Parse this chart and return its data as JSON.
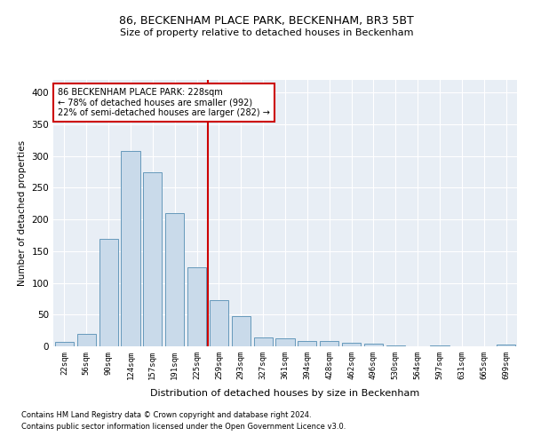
{
  "title": "86, BECKENHAM PLACE PARK, BECKENHAM, BR3 5BT",
  "subtitle": "Size of property relative to detached houses in Beckenham",
  "xlabel": "Distribution of detached houses by size in Beckenham",
  "ylabel": "Number of detached properties",
  "bar_labels": [
    "22sqm",
    "56sqm",
    "90sqm",
    "124sqm",
    "157sqm",
    "191sqm",
    "225sqm",
    "259sqm",
    "293sqm",
    "327sqm",
    "361sqm",
    "394sqm",
    "428sqm",
    "462sqm",
    "496sqm",
    "530sqm",
    "564sqm",
    "597sqm",
    "631sqm",
    "665sqm",
    "699sqm"
  ],
  "bar_values": [
    7,
    20,
    170,
    308,
    275,
    210,
    125,
    73,
    48,
    14,
    12,
    8,
    8,
    5,
    4,
    1,
    0,
    1,
    0,
    0,
    3
  ],
  "bar_color": "#c9daea",
  "bar_edge_color": "#6699bb",
  "vline_color": "#cc0000",
  "vline_x_index": 6.5,
  "annotation_title": "86 BECKENHAM PLACE PARK: 228sqm",
  "annotation_line1": "← 78% of detached houses are smaller (992)",
  "annotation_line2": "22% of semi-detached houses are larger (282) →",
  "annotation_box_color": "#cc0000",
  "ylim": [
    0,
    420
  ],
  "yticks": [
    0,
    50,
    100,
    150,
    200,
    250,
    300,
    350,
    400
  ],
  "bg_color": "#e8eef5",
  "title_fontsize": 9,
  "subtitle_fontsize": 8,
  "footnote1": "Contains HM Land Registry data © Crown copyright and database right 2024.",
  "footnote2": "Contains public sector information licensed under the Open Government Licence v3.0."
}
